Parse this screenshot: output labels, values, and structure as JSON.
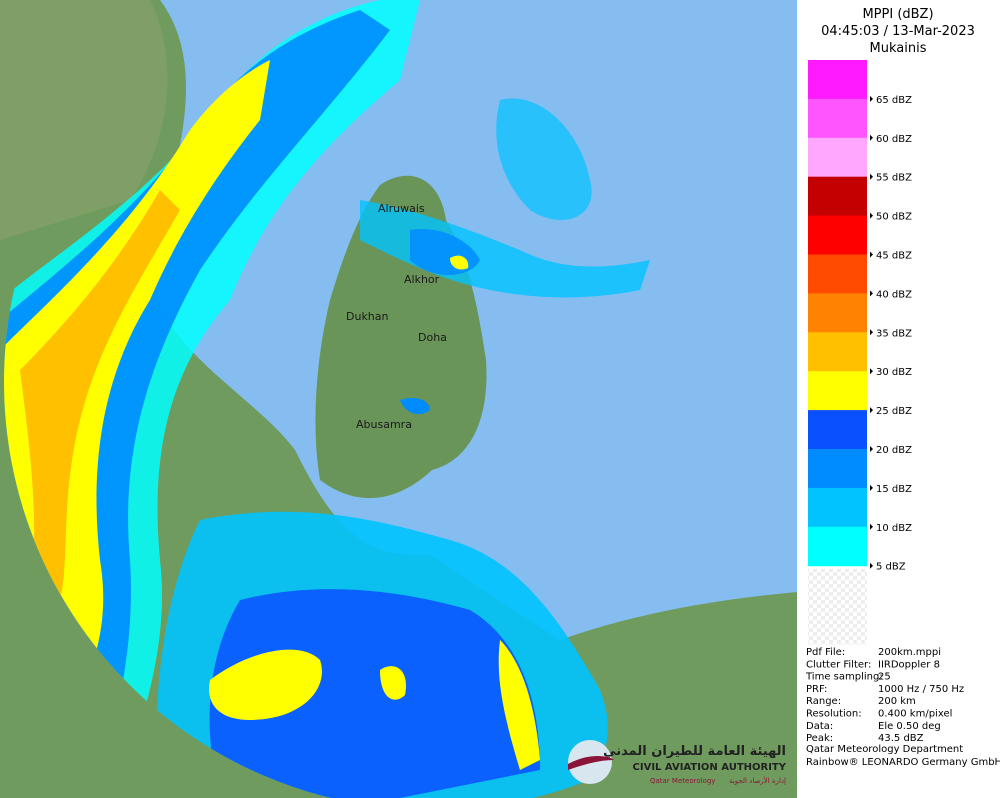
{
  "header": {
    "title": "MPPI (dBZ)",
    "time": "04:45:03 / 13-Mar-2023",
    "site": "Mukainis"
  },
  "legend": {
    "items": [
      {
        "label": "65 dBZ",
        "color": "#ff1aff"
      },
      {
        "label": "60 dBZ",
        "color": "#ff55ff"
      },
      {
        "label": "55 dBZ",
        "color": "#ffa6ff"
      },
      {
        "label": "50 dBZ",
        "color": "#c40000"
      },
      {
        "label": "45 dBZ",
        "color": "#ff0000"
      },
      {
        "label": "40 dBZ",
        "color": "#ff4a00"
      },
      {
        "label": "35 dBZ",
        "color": "#ff8200"
      },
      {
        "label": "30 dBZ",
        "color": "#ffc000"
      },
      {
        "label": "25 dBZ",
        "color": "#ffff00"
      },
      {
        "label": "20 dBZ",
        "color": "#0a50ff"
      },
      {
        "label": "15 dBZ",
        "color": "#008cff"
      },
      {
        "label": "10 dBZ",
        "color": "#00c3ff"
      },
      {
        "label": "5 dBZ",
        "color": "#00ffff"
      }
    ]
  },
  "info": {
    "rows": [
      {
        "key": "Pdf File:",
        "value": "200km.mppi"
      },
      {
        "key": "Clutter Filter:",
        "value": "IIRDoppler 8"
      },
      {
        "key": "Time sampling:",
        "value": "25"
      },
      {
        "key": "PRF:",
        "value": "1000 Hz / 750 Hz"
      },
      {
        "key": "Range:",
        "value": "200 km"
      },
      {
        "key": "Resolution:",
        "value": "0.400 km/pixel"
      },
      {
        "key": "Data:",
        "value": "Ele 0.50 deg"
      },
      {
        "key": "Peak:",
        "value": "43.5 dBZ"
      }
    ],
    "footer": [
      "Qatar Meteorology Department",
      "Rainbow® LEONARDO Germany GmbH"
    ]
  },
  "map": {
    "places": [
      "Alruwais",
      "Alkhor",
      "Dukhan",
      "Doha",
      "Abusamra"
    ]
  },
  "logo": {
    "arabic_title": "الهيئة العامة للطيران المدني",
    "title": "CIVIL AVIATION AUTHORITY",
    "sub_en": "Qatar Meteorology",
    "sub_ar": "إدارة الأرصاد الجوية"
  }
}
